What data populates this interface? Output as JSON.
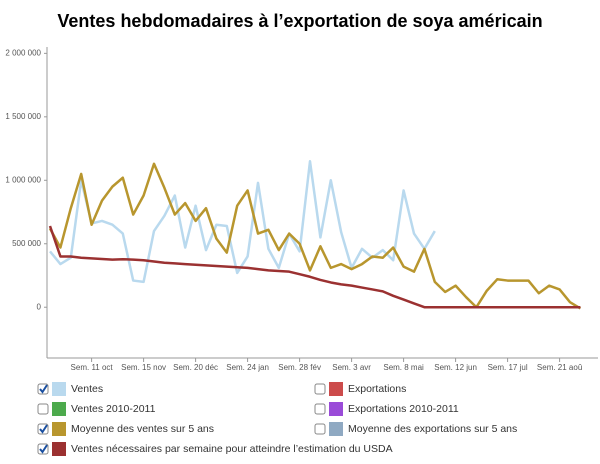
{
  "chart_data": {
    "type": "line",
    "title": "Ventes hebdomadaires à l’exportation de soya américain",
    "categories": [
      null,
      null,
      null,
      null,
      "Sem. 11 oct",
      null,
      null,
      null,
      null,
      "Sem. 15 nov",
      null,
      null,
      null,
      null,
      "Sem. 20 déc",
      null,
      null,
      null,
      null,
      "Sem. 24 jan",
      null,
      null,
      null,
      null,
      "Sem. 28 fév",
      null,
      null,
      null,
      null,
      "Sem. 3 avr",
      null,
      null,
      null,
      null,
      "Sem. 8 mai",
      null,
      null,
      null,
      null,
      "Sem. 12 jun",
      null,
      null,
      null,
      null,
      "Sem. 17 jul",
      null,
      null,
      null,
      null,
      "Sem. 21 aoû",
      null,
      null
    ],
    "ylim": [
      -400000,
      2050000
    ],
    "yticks": [
      0,
      {
        "value": 500000,
        "label": "500 000"
      },
      {
        "value": 1000000,
        "label": "1 000 000"
      },
      {
        "value": 1500000,
        "label": "1 500 000"
      },
      {
        "value": 2000000,
        "label": "2 000 000"
      }
    ],
    "grid": false,
    "series": [
      {
        "name": "Ventes",
        "color": "#b9d9ee",
        "checked": true,
        "values": [
          440000,
          340000,
          390000,
          1000000,
          660000,
          680000,
          650000,
          580000,
          210000,
          200000,
          600000,
          720000,
          880000,
          470000,
          800000,
          450000,
          650000,
          640000,
          270000,
          400000,
          980000,
          460000,
          310000,
          580000,
          440000,
          1150000,
          550000,
          1000000,
          590000,
          310000,
          460000,
          390000,
          450000,
          370000,
          920000,
          580000,
          460000,
          600000,
          null,
          null,
          null,
          null,
          null,
          null,
          null,
          null,
          null,
          null,
          null,
          null,
          null,
          null
        ]
      },
      {
        "name": "Exportations",
        "color": "#cc4b4b",
        "checked": false
      },
      {
        "name": "Ventes 2010-2011",
        "color": "#4caa4c",
        "checked": false
      },
      {
        "name": "Exportations 2010-2011",
        "color": "#9a4bd8",
        "checked": false
      },
      {
        "name": "Moyenne des ventes sur 5 ans",
        "color": "#b8962e",
        "checked": true,
        "values": [
          620000,
          470000,
          780000,
          1050000,
          650000,
          840000,
          950000,
          1020000,
          730000,
          880000,
          1130000,
          940000,
          730000,
          820000,
          680000,
          780000,
          540000,
          430000,
          800000,
          920000,
          580000,
          610000,
          450000,
          580000,
          500000,
          290000,
          480000,
          310000,
          340000,
          300000,
          340000,
          400000,
          390000,
          470000,
          320000,
          280000,
          460000,
          200000,
          120000,
          170000,
          80000,
          0,
          130000,
          220000,
          210000,
          210000,
          210000,
          110000,
          170000,
          140000,
          40000,
          -10000
        ]
      },
      {
        "name": "Moyenne des exportations sur 5 ans",
        "color": "#8fa9c2",
        "checked": false
      },
      {
        "name": "Ventes nécessaires par semaine pour atteindre l’estimation du USDA",
        "color": "#9b3131",
        "checked": true,
        "values": [
          640000,
          400000,
          400000,
          390000,
          385000,
          380000,
          375000,
          378000,
          375000,
          370000,
          360000,
          350000,
          345000,
          340000,
          335000,
          330000,
          325000,
          320000,
          315000,
          310000,
          300000,
          290000,
          285000,
          280000,
          260000,
          240000,
          215000,
          195000,
          180000,
          170000,
          155000,
          140000,
          125000,
          90000,
          60000,
          30000,
          0,
          0,
          0,
          0,
          0,
          0,
          0,
          0,
          0,
          0,
          0,
          0,
          0,
          0,
          0,
          0
        ]
      }
    ]
  }
}
